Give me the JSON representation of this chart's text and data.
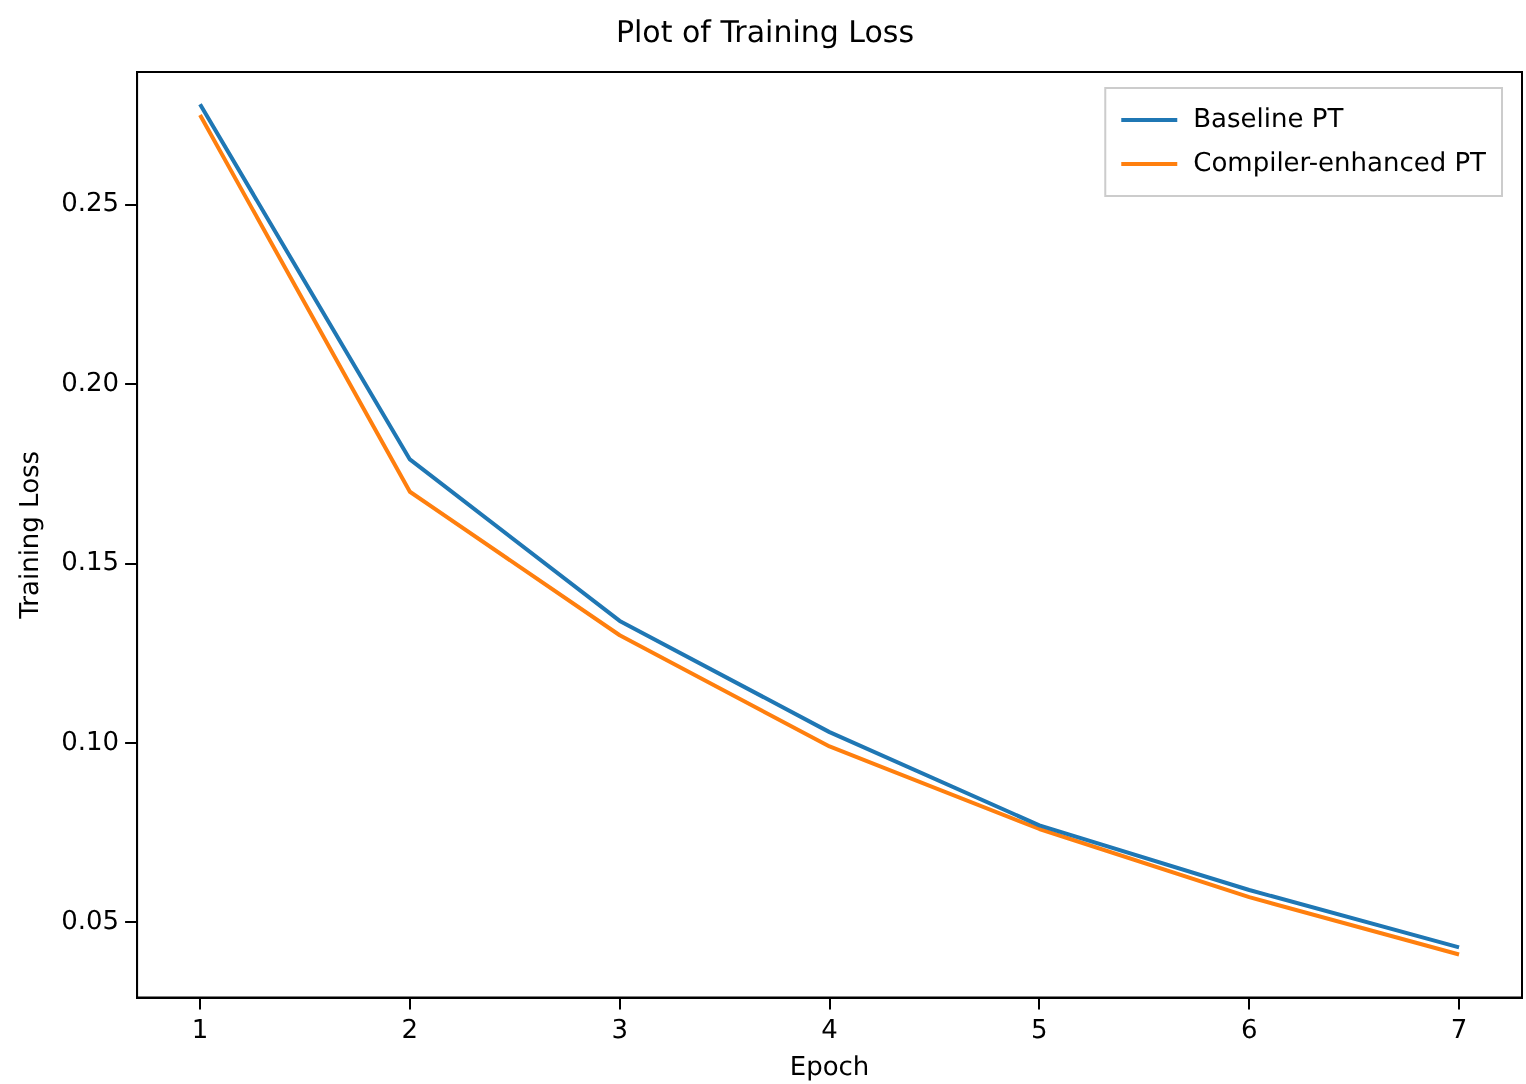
{
  "chart_data": {
    "type": "line",
    "title": "Plot of Training Loss",
    "xlabel": "Epoch",
    "ylabel": "Training Loss",
    "x": [
      1,
      2,
      3,
      4,
      5,
      6,
      7
    ],
    "series": [
      {
        "name": "Baseline PT",
        "color": "#1f77b4",
        "values": [
          0.278,
          0.179,
          0.134,
          0.103,
          0.077,
          0.059,
          0.043
        ]
      },
      {
        "name": "Compiler-enhanced PT",
        "color": "#ff7f0e",
        "values": [
          0.275,
          0.17,
          0.13,
          0.099,
          0.076,
          0.057,
          0.041
        ]
      }
    ],
    "xlim": [
      0.7,
      7.3
    ],
    "xticks": [
      1,
      2,
      3,
      4,
      5,
      6,
      7
    ],
    "ylim": [
      0.029,
      0.287
    ],
    "yticks": [
      {
        "value": 0.05,
        "label": "0.05"
      },
      {
        "value": 0.1,
        "label": "0.10"
      },
      {
        "value": 0.15,
        "label": "0.15"
      },
      {
        "value": 0.2,
        "label": "0.20"
      },
      {
        "value": 0.25,
        "label": "0.25"
      }
    ],
    "grid": false,
    "legend": "top right",
    "marker": "none",
    "line_style": "solid"
  }
}
